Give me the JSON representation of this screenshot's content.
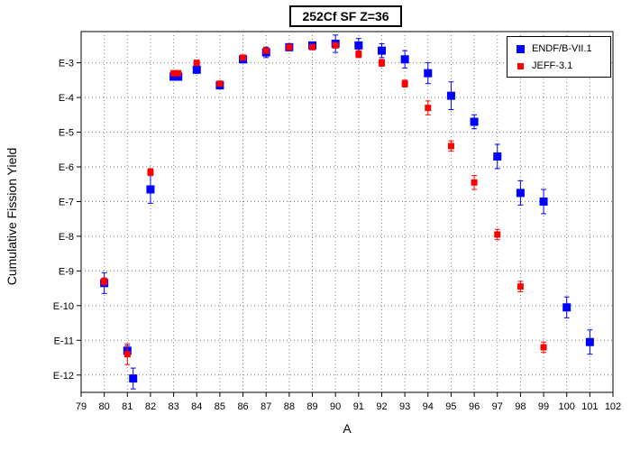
{
  "chart_data": {
    "type": "scatter",
    "title": "252Cf SF Z=36",
    "xlabel": "A",
    "ylabel": "Cumulative Fission Yield",
    "xlim": [
      79,
      102
    ],
    "ylim": [
      -12.5,
      -2.1
    ],
    "y_scale": "log",
    "x_ticks": [
      79,
      80,
      81,
      82,
      83,
      84,
      85,
      86,
      87,
      88,
      89,
      90,
      91,
      92,
      93,
      94,
      95,
      96,
      97,
      98,
      99,
      100,
      101,
      102
    ],
    "y_ticks": [
      {
        "v": -3,
        "label": "E-3"
      },
      {
        "v": -4,
        "label": "E-4"
      },
      {
        "v": -5,
        "label": "E-5"
      },
      {
        "v": -6,
        "label": "E-6"
      },
      {
        "v": -7,
        "label": "E-7"
      },
      {
        "v": -8,
        "label": "E-8"
      },
      {
        "v": -9,
        "label": "E-9"
      },
      {
        "v": -10,
        "label": "E-10"
      },
      {
        "v": -11,
        "label": "E-11"
      },
      {
        "v": -12,
        "label": "E-12"
      }
    ],
    "grid": true,
    "legend_position": "top-right",
    "series": [
      {
        "name": "ENDF/B-VII.1",
        "color": "#0000ff",
        "marker": "square-large",
        "points": [
          {
            "x": 80,
            "y": -9.35,
            "err": 0.3
          },
          {
            "x": 81,
            "y": -11.3,
            "err": 0.15
          },
          {
            "x": 81.25,
            "y": -12.1,
            "err": 0.3
          },
          {
            "x": 82,
            "y": -6.65,
            "err": 0.4
          },
          {
            "x": 83,
            "y": -3.4,
            "err": 0.1
          },
          {
            "x": 83.2,
            "y": -3.4,
            "err": 0.1
          },
          {
            "x": 84,
            "y": -3.2,
            "err": 0.1
          },
          {
            "x": 85,
            "y": -3.65,
            "err": 0.1
          },
          {
            "x": 86,
            "y": -2.9,
            "err": 0.1
          },
          {
            "x": 87,
            "y": -2.7,
            "err": 0.15
          },
          {
            "x": 88,
            "y": -2.55,
            "err": 0.1
          },
          {
            "x": 89,
            "y": -2.5,
            "err": 0.1
          },
          {
            "x": 90,
            "y": -2.45,
            "err": 0.25
          },
          {
            "x": 91,
            "y": -2.5,
            "err": 0.2
          },
          {
            "x": 92,
            "y": -2.65,
            "err": 0.2
          },
          {
            "x": 93,
            "y": -2.9,
            "err": 0.25
          },
          {
            "x": 94,
            "y": -3.3,
            "err": 0.3
          },
          {
            "x": 95,
            "y": -3.95,
            "err": 0.4
          },
          {
            "x": 96,
            "y": -4.7,
            "err": 0.2
          },
          {
            "x": 97,
            "y": -5.7,
            "err": 0.35
          },
          {
            "x": 98,
            "y": -6.75,
            "err": 0.35
          },
          {
            "x": 99,
            "y": -7.0,
            "err": 0.35
          },
          {
            "x": 100,
            "y": -10.05,
            "err": 0.3
          },
          {
            "x": 101,
            "y": -11.05,
            "err": 0.35
          }
        ]
      },
      {
        "name": "JEFF-3.1",
        "color": "#ff0000",
        "marker": "square-small",
        "points": [
          {
            "x": 80,
            "y": -9.3,
            "err": 0.1
          },
          {
            "x": 81,
            "y": -11.4,
            "err": 0.3
          },
          {
            "x": 82,
            "y": -6.15,
            "err": 0.1
          },
          {
            "x": 83,
            "y": -3.3,
            "err": 0.05
          },
          {
            "x": 83.2,
            "y": -3.3,
            "err": 0.05
          },
          {
            "x": 84,
            "y": -3.0,
            "err": 0.05
          },
          {
            "x": 85,
            "y": -3.6,
            "err": 0.05
          },
          {
            "x": 86,
            "y": -2.85,
            "err": 0.05
          },
          {
            "x": 87,
            "y": -2.65,
            "err": 0.05
          },
          {
            "x": 88,
            "y": -2.55,
            "err": 0.05
          },
          {
            "x": 89,
            "y": -2.55,
            "err": 0.05
          },
          {
            "x": 90,
            "y": -2.5,
            "err": 0.05
          },
          {
            "x": 91,
            "y": -2.75,
            "err": 0.1
          },
          {
            "x": 92,
            "y": -3.0,
            "err": 0.1
          },
          {
            "x": 93,
            "y": -3.6,
            "err": 0.1
          },
          {
            "x": 94,
            "y": -4.3,
            "err": 0.2
          },
          {
            "x": 95,
            "y": -5.4,
            "err": 0.15
          },
          {
            "x": 96,
            "y": -6.45,
            "err": 0.2
          },
          {
            "x": 97,
            "y": -7.95,
            "err": 0.15
          },
          {
            "x": 98,
            "y": -9.45,
            "err": 0.15
          },
          {
            "x": 99,
            "y": -11.2,
            "err": 0.15
          }
        ]
      }
    ]
  }
}
